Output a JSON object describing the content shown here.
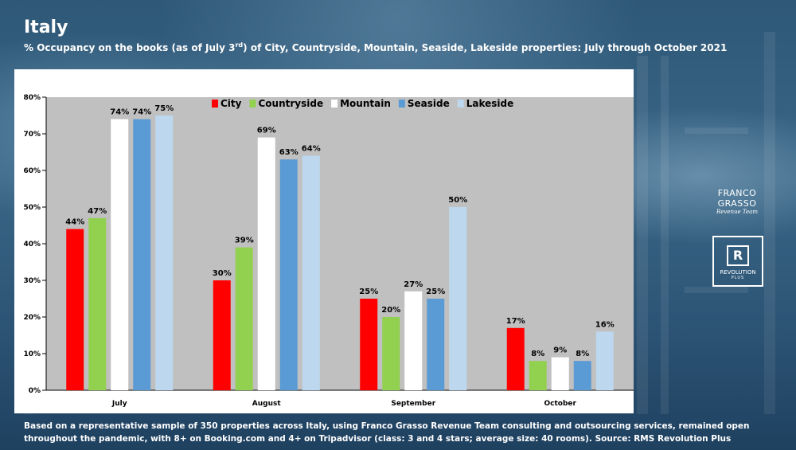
{
  "header": {
    "title": "Italy",
    "subtitle_pre": "% Occupancy on the books (as of July 3",
    "subtitle_sup": "rd",
    "subtitle_post": ") of City, Countryside, Mountain, Seaside, Lakeside properties:  July through October 2021"
  },
  "branding": {
    "franco_grasso": "FRANCO GRASSO",
    "franco_grasso_sub": "Revenue Team",
    "revolution_mark": "R",
    "revolution_name": "REVOLUTION",
    "revolution_sub": "PLUS"
  },
  "footnote": "Based on a representative sample of 350 properties across Italy, using Franco Grasso Revenue Team consulting and outsourcing services, remained open throughout the pandemic, with 8+ on Booking.com and 4+ on Tripadvisor (class: 3 and 4 stars; average size: 40 rooms). Source: RMS Revolution Plus",
  "chart_data": {
    "type": "bar",
    "categories": [
      "July",
      "August",
      "September",
      "October"
    ],
    "series": [
      {
        "name": "City",
        "color": "#ff0000",
        "values": [
          44,
          30,
          25,
          17
        ]
      },
      {
        "name": "Countryside",
        "color": "#92d050",
        "values": [
          47,
          39,
          20,
          8
        ]
      },
      {
        "name": "Mountain",
        "color": "#ffffff",
        "values": [
          74,
          69,
          27,
          9
        ]
      },
      {
        "name": "Seaside",
        "color": "#5b9bd5",
        "values": [
          74,
          63,
          25,
          8
        ]
      },
      {
        "name": "Lakeside",
        "color": "#bdd7ee",
        "values": [
          75,
          64,
          50,
          16
        ]
      }
    ],
    "ylim": [
      0,
      80
    ],
    "yticks": [
      0,
      10,
      20,
      30,
      40,
      50,
      60,
      70,
      80
    ],
    "tick_suffix": "%",
    "value_suffix": "%",
    "legend_position": "top-center",
    "plot_background": "#c0c0c0",
    "grid": false
  }
}
